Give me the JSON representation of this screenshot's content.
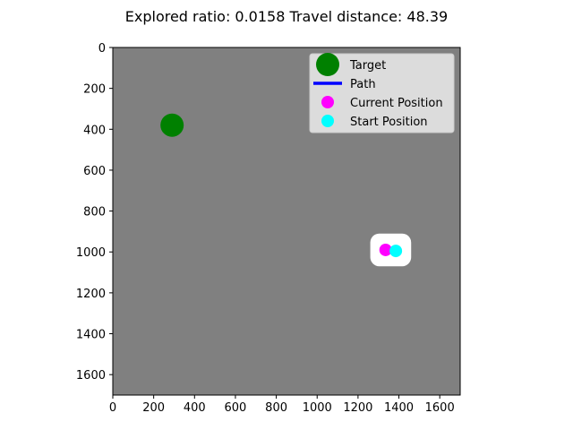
{
  "chart_data": {
    "type": "scatter",
    "title": "Explored ratio: 0.0158  Travel distance: 48.39",
    "xlabel": "",
    "ylabel": "",
    "xlim": [
      0,
      1700
    ],
    "ylim": [
      1700,
      0
    ],
    "y_inverted": true,
    "grid": false,
    "background_color": "#808080",
    "explored_color": "#ffffff",
    "x_ticks": [
      0,
      200,
      400,
      600,
      800,
      1000,
      1200,
      1400,
      1600
    ],
    "y_ticks": [
      0,
      200,
      400,
      600,
      800,
      1000,
      1200,
      1400,
      1600
    ],
    "explored_region": {
      "center": [
        1360,
        990
      ],
      "half_width": 100,
      "half_height": 80
    },
    "series": [
      {
        "name": "Target",
        "kind": "marker",
        "color": "#008000",
        "x": [
          290
        ],
        "y": [
          380
        ],
        "marker_size": "large"
      },
      {
        "name": "Path",
        "kind": "line",
        "color": "#0000ff",
        "x": [
          1385,
          1335
        ],
        "y": [
          990,
          990
        ]
      },
      {
        "name": "Current Position",
        "kind": "marker",
        "color": "#ff00ff",
        "x": [
          1335
        ],
        "y": [
          990
        ],
        "marker_size": "medium"
      },
      {
        "name": "Start Position",
        "kind": "marker",
        "color": "#00ffff",
        "x": [
          1385
        ],
        "y": [
          995
        ],
        "marker_size": "medium"
      }
    ],
    "legend": {
      "placement": "top-right",
      "entries": [
        "Target",
        "Path",
        "Current Position",
        "Start Position"
      ]
    }
  }
}
